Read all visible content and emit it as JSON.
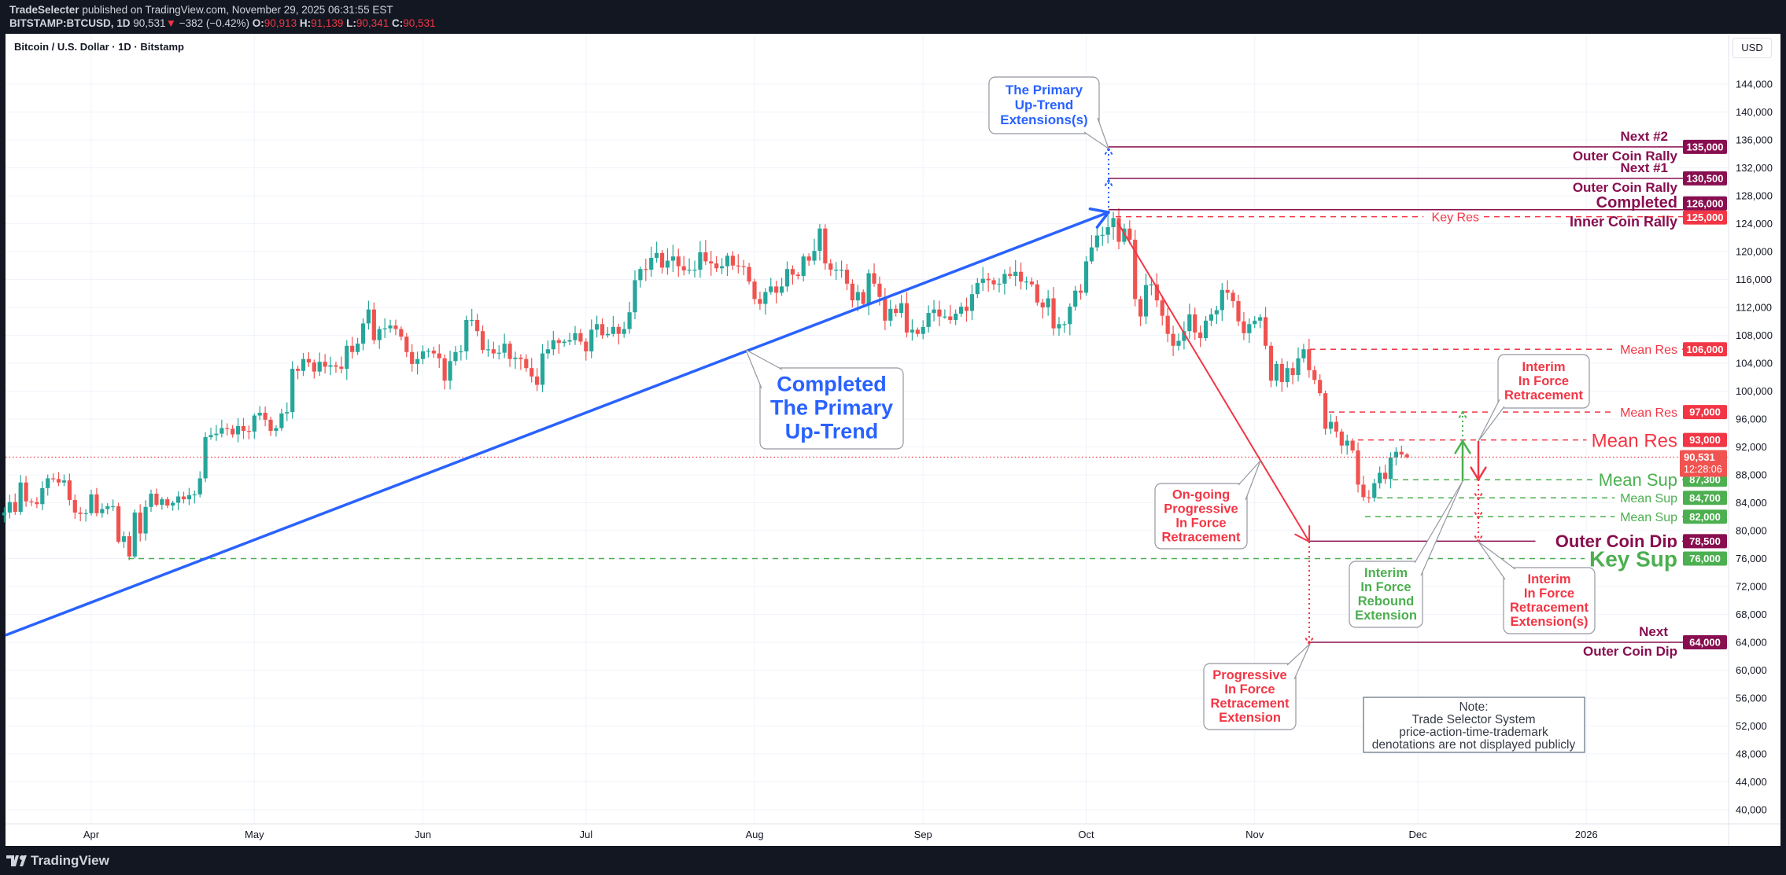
{
  "header": {
    "publisher": "TradeSelecter",
    "published_text": "published on TradingView.com, November 29, 2025 06:31:55 EST",
    "symbol": "BITSTAMP:BTCUSD, 1D",
    "last": "90,531",
    "change_arrow": "▼",
    "change": "−382 (−0.42%)",
    "o_label": "O:",
    "o": "90,913",
    "h_label": "H:",
    "h": "91,139",
    "l_label": "L:",
    "l": "90,341",
    "c_label": "C:",
    "c": "90,531"
  },
  "chart": {
    "title": "Bitcoin / U.S. Dollar · 1D · Bitstamp",
    "currency": "USD",
    "current_price_tag": "90,531",
    "countdown": "12:28:06"
  },
  "footer": {
    "logo_text": "TradingView"
  },
  "colors": {
    "up": "#26a69a",
    "down": "#ef5350",
    "purple": "#880e4f",
    "red": "#f23645",
    "green": "#4caf50",
    "blue": "#2962ff"
  },
  "chart_data": {
    "type": "candlestick",
    "xlim": [
      "2025-03-16",
      "2026-01-27"
    ],
    "ylim": [
      38000,
      151200
    ],
    "grid": true,
    "x_ticks": [
      "Apr",
      "May",
      "Jun",
      "Jul",
      "Aug",
      "Sep",
      "Oct",
      "Nov",
      "Dec",
      "2026"
    ],
    "y_ticks": [
      "144,000",
      "140,000",
      "136,000",
      "132,000",
      "128,000",
      "124,000",
      "120,000",
      "116,000",
      "112,000",
      "108,000",
      "104,000",
      "100,000",
      "96,000",
      "92,000",
      "88,000",
      "84,000",
      "80,000",
      "76,000",
      "72,000",
      "68,000",
      "64,000",
      "60,000",
      "56,000",
      "52,000",
      "48,000",
      "44,000",
      "40,000"
    ],
    "first_date": "2025-03-16",
    "last_date": "2025-11-29",
    "last_candle": {
      "open": 90913,
      "high": 91139,
      "low": 90341,
      "close": 90531
    },
    "close": [
      82600,
      84100,
      82700,
      86900,
      84200,
      84100,
      83800,
      86100,
      87500,
      87400,
      86900,
      87200,
      84400,
      82600,
      82400,
      82500,
      85200,
      82500,
      83100,
      83500,
      83500,
      78400,
      79200,
      76300,
      82600,
      79600,
      83400,
      85300,
      83700,
      84500,
      83600,
      84000,
      84900,
      84500,
      85100,
      85200,
      87500,
      93400,
      93700,
      93900,
      94700,
      94600,
      93800,
      95000,
      94300,
      94200,
      96500,
      96900,
      95900,
      94300,
      94700,
      96800,
      97000,
      103200,
      102900,
      104600,
      104100,
      102800,
      104200,
      103500,
      103700,
      103500,
      103200,
      106500,
      105600,
      106800,
      109700,
      111700,
      107300,
      108900,
      109000,
      109400,
      108900,
      107800,
      105600,
      103900,
      104600,
      105700,
      105800,
      105400,
      104700,
      101500,
      104300,
      105600,
      105700,
      110200,
      110200,
      108600,
      105900,
      106000,
      105400,
      105500,
      106800,
      104600,
      104800,
      104600,
      103300,
      102100,
      100900,
      105400,
      106000,
      107300,
      106900,
      107100,
      107300,
      108300,
      107100,
      105700,
      108800,
      109600,
      108000,
      108200,
      109200,
      108200,
      108900,
      111300,
      115900,
      117500,
      117400,
      119100,
      119800,
      117700,
      118700,
      119300,
      117900,
      117300,
      117400,
      117400,
      119900,
      118600,
      118300,
      117600,
      117900,
      119400,
      118000,
      117900,
      117800,
      115700,
      113200,
      112500,
      114200,
      115000,
      114100,
      115000,
      117500,
      116700,
      116500,
      119300,
      118700,
      120100,
      123300,
      118300,
      117400,
      117400,
      117400,
      115400,
      113000,
      114200,
      112500,
      116900,
      115400,
      113500,
      110100,
      111800,
      111200,
      112600,
      108400,
      108800,
      108200,
      109200,
      111200,
      111700,
      110700,
      110700,
      110200,
      111100,
      112100,
      111500,
      113900,
      115500,
      116100,
      115900,
      115300,
      115400,
      116800,
      116500,
      117100,
      115700,
      115700,
      115300,
      112700,
      112000,
      113300,
      109000,
      109600,
      109600,
      112100,
      114400,
      114100,
      118600,
      120600,
      122300,
      122400,
      123500,
      124800,
      121400,
      123300,
      121700,
      113200,
      110700,
      115200,
      115300,
      113000,
      110800,
      108200,
      106500,
      107200,
      108600,
      111000,
      108400,
      107600,
      110100,
      111000,
      111600,
      114500,
      114100,
      112900,
      110000,
      108300,
      109600,
      110100,
      110600,
      106500,
      101500,
      103900,
      101300,
      103300,
      102300,
      104700,
      106000,
      103000,
      101600,
      99700,
      94600,
      95600,
      94200,
      92200,
      92900,
      91500,
      86600,
      84800,
      84700,
      86800,
      88300,
      87400,
      90500,
      91300,
      90913,
      90531
    ],
    "current_price": 90531,
    "levels": [
      {
        "price": 135000,
        "tag": "135,000",
        "labels": [
          "Next #2",
          "Outer Coin Rally"
        ],
        "color": "#880e4f",
        "style": "solid"
      },
      {
        "price": 130500,
        "tag": "130,500",
        "labels": [
          "Next #1",
          "Outer Coin Rally"
        ],
        "color": "#880e4f",
        "style": "solid"
      },
      {
        "price": 126000,
        "tag": "126,000",
        "labels": [
          "Completed",
          "Inner Coin Rally"
        ],
        "color": "#880e4f",
        "style": "solid"
      },
      {
        "price": 125000,
        "tag": "125,000",
        "labels": [
          "Key Res"
        ],
        "color": "#f23645",
        "style": "dashed"
      },
      {
        "price": 106000,
        "tag": "106,000",
        "labels": [
          "Mean Res"
        ],
        "color": "#f23645",
        "style": "dashed"
      },
      {
        "price": 97000,
        "tag": "97,000",
        "labels": [
          "Mean Res"
        ],
        "color": "#f23645",
        "style": "dashed"
      },
      {
        "price": 93000,
        "tag": "93,000",
        "labels": [
          "Mean Res"
        ],
        "color": "#f23645",
        "style": "dashed"
      },
      {
        "price": 87300,
        "tag": "87,300",
        "labels": [
          "Mean Sup"
        ],
        "color": "#4caf50",
        "style": "dashed"
      },
      {
        "price": 84700,
        "tag": "84,700",
        "labels": [
          "Mean Sup"
        ],
        "color": "#4caf50",
        "style": "dashed"
      },
      {
        "price": 82000,
        "tag": "82,000",
        "labels": [
          "Mean Sup"
        ],
        "color": "#4caf50",
        "style": "dashed"
      },
      {
        "price": 78500,
        "tag": "78,500",
        "labels": [
          "Outer Coin Dip"
        ],
        "color": "#880e4f",
        "style": "solid"
      },
      {
        "price": 76000,
        "tag": "76,000",
        "labels": [
          "Key Sup"
        ],
        "color": "#4caf50",
        "style": "dashed"
      },
      {
        "price": 64000,
        "tag": "64,000",
        "labels": [
          "Next",
          "Outer Coin Dip"
        ],
        "color": "#880e4f",
        "style": "solid"
      }
    ],
    "annotations": [
      {
        "lines": [
          "The Primary",
          "Up-Trend",
          "Extensions(s)"
        ],
        "color": "#2962ff"
      },
      {
        "lines": [
          "Completed",
          "The Primary",
          "Up-Trend"
        ],
        "color": "#2962ff"
      },
      {
        "lines": [
          "On-going",
          "Progressive",
          "In Force",
          "Retracement"
        ],
        "color": "#f23645"
      },
      {
        "lines": [
          "Progressive",
          "In Force",
          "Retracement",
          "Extension"
        ],
        "color": "#f23645"
      },
      {
        "lines": [
          "Interim",
          "In Force",
          "Rebound",
          "Extension"
        ],
        "color": "#4caf50"
      },
      {
        "lines": [
          "Interim",
          "In Force",
          "Retracement"
        ],
        "color": "#f23645"
      },
      {
        "lines": [
          "Interim",
          "In Force",
          "Retracement",
          "Extension(s)"
        ],
        "color": "#f23645"
      }
    ],
    "note": [
      "Note:",
      "Trade Selector System",
      "price-action-time-trademark",
      "denotations are not displayed publicly"
    ]
  }
}
